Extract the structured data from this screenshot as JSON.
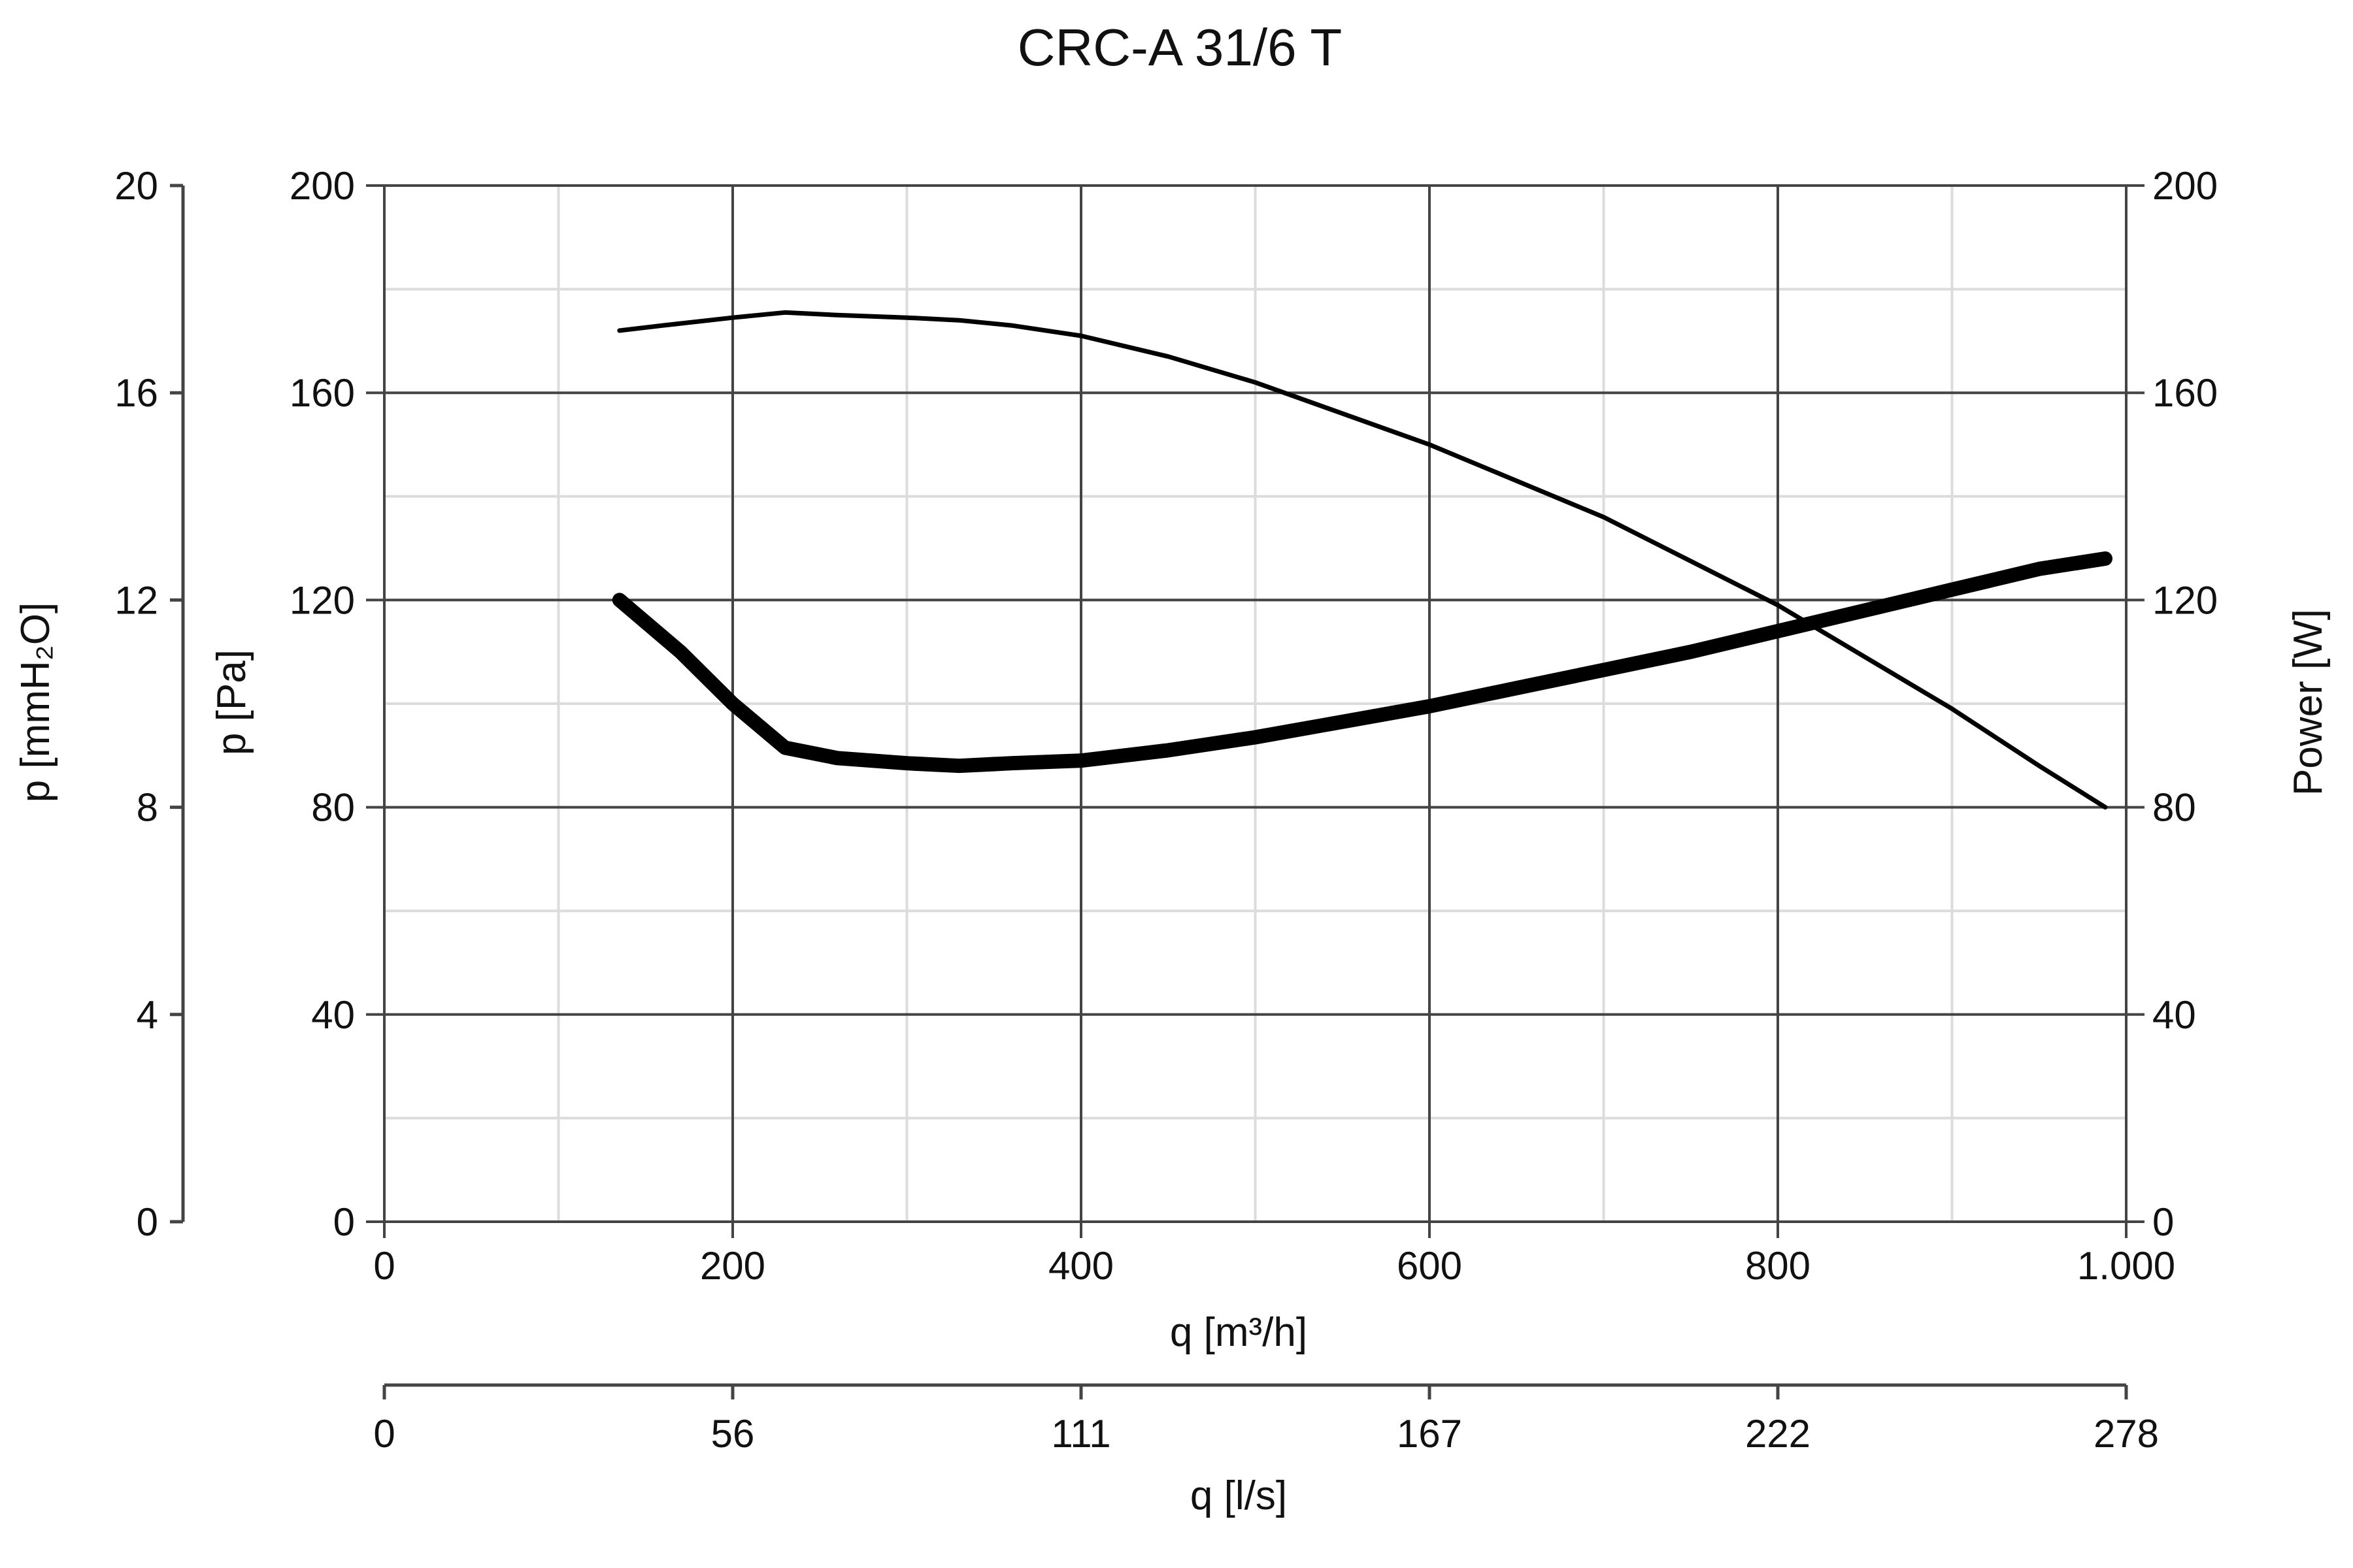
{
  "chart_data": {
    "type": "line",
    "title": "CRC-A 31/6 T",
    "xlabel": "q [m³/h]",
    "xlim": [
      0,
      1000
    ],
    "x_ticks": [
      "0",
      "200",
      "400",
      "600",
      "800",
      "1.000"
    ],
    "ylabel": "p [Pa]",
    "ylim": [
      0,
      200
    ],
    "y_ticks": [
      "0",
      "40",
      "80",
      "120",
      "160",
      "200"
    ],
    "grid": true,
    "y2_label": "p [mmH₂O]",
    "y2_ticks": [
      "0",
      "4",
      "8",
      "12",
      "16",
      "20"
    ],
    "y3_label": "Power [W]",
    "y3_ticks": [
      "0",
      "40",
      "80",
      "120",
      "160",
      "200"
    ],
    "x2_label": "q [l/s]",
    "x2_ticks": [
      "0",
      "56",
      "111",
      "167",
      "222",
      "278"
    ],
    "series": [
      {
        "axis": "p [Pa]",
        "x": [
          135,
          160,
          200,
          230,
          260,
          300,
          330,
          360,
          400,
          450,
          500,
          550,
          600,
          650,
          700,
          750,
          800,
          850,
          900,
          950,
          988
        ],
        "y": [
          172,
          173,
          174.5,
          175.5,
          175,
          174.5,
          174,
          173,
          171,
          167,
          162,
          156,
          150,
          143,
          136,
          127.5,
          119,
          109,
          99,
          88,
          80
        ]
      },
      {
        "axis": "Power [W]",
        "x": [
          135,
          170,
          200,
          230,
          260,
          300,
          330,
          360,
          400,
          450,
          500,
          550,
          600,
          650,
          700,
          750,
          800,
          850,
          900,
          950,
          988
        ],
        "y": [
          120,
          110,
          100,
          91.5,
          89.5,
          88.5,
          88,
          88.5,
          89,
          91,
          93.5,
          96.5,
          99.5,
          103,
          106.5,
          110,
          114,
          118,
          122,
          126,
          128
        ]
      }
    ]
  }
}
